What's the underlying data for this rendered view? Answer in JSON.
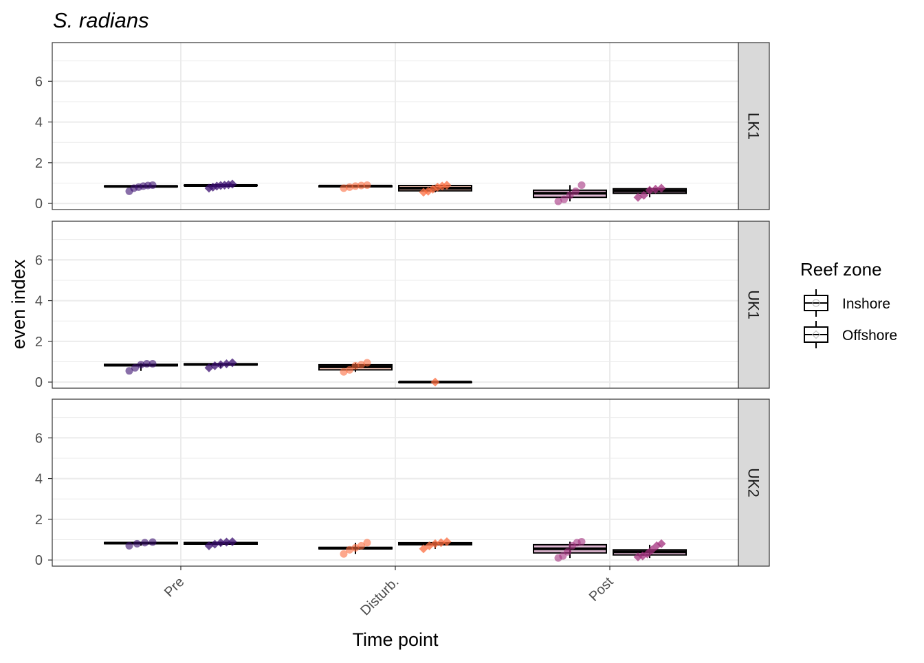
{
  "chart_data": {
    "type": "boxplot",
    "title": "S. radians",
    "xlabel": "Time point",
    "ylabel": "even index",
    "categories": [
      "Pre",
      "Disturb.",
      "Post"
    ],
    "y_ticks": [
      0,
      2,
      4,
      6
    ],
    "ylim": [
      -0.3,
      7.9
    ],
    "grid": true,
    "legend": {
      "title": "Reef zone",
      "position": "right",
      "items": [
        {
          "label": "Inshore",
          "shape": "circle"
        },
        {
          "label": "Offshore",
          "shape": "diamond"
        }
      ]
    },
    "colors": {
      "Pre": "#3b0f70",
      "Disturb.": "#fc6c3f",
      "Post": "#a3307e",
      "strip_bg": "#d9d9d9",
      "grid": "#ebebeb"
    },
    "facets": [
      {
        "label": "LK1",
        "groups": [
          {
            "category": "Pre",
            "zone": "Inshore",
            "box": [
              0.8,
              0.82,
              0.84,
              0.86,
              0.88
            ],
            "points": [
              0.6,
              0.75,
              0.8,
              0.85,
              0.88,
              0.9
            ]
          },
          {
            "category": "Pre",
            "zone": "Offshore",
            "box": [
              0.85,
              0.87,
              0.88,
              0.9,
              0.92
            ],
            "points": [
              0.75,
              0.8,
              0.85,
              0.88,
              0.9,
              0.92,
              0.95
            ]
          },
          {
            "category": "Disturb.",
            "zone": "Inshore",
            "box": [
              0.8,
              0.82,
              0.85,
              0.87,
              0.88
            ],
            "points": [
              0.75,
              0.8,
              0.85,
              0.88,
              0.9
            ]
          },
          {
            "category": "Disturb.",
            "zone": "Offshore",
            "box": [
              0.55,
              0.62,
              0.75,
              0.88,
              0.92
            ],
            "points": [
              0.55,
              0.6,
              0.7,
              0.8,
              0.85,
              0.9
            ]
          },
          {
            "category": "Post",
            "zone": "Inshore",
            "box": [
              0.1,
              0.3,
              0.5,
              0.65,
              0.9
            ],
            "points": [
              0.1,
              0.2,
              0.4,
              0.6,
              0.9
            ]
          },
          {
            "category": "Post",
            "zone": "Offshore",
            "box": [
              0.3,
              0.5,
              0.62,
              0.72,
              0.8
            ],
            "points": [
              0.3,
              0.4,
              0.65,
              0.7,
              0.75
            ]
          }
        ]
      },
      {
        "label": "UK1",
        "groups": [
          {
            "category": "Pre",
            "zone": "Inshore",
            "box": [
              0.55,
              0.8,
              0.83,
              0.87,
              0.92
            ],
            "points": [
              0.55,
              0.7,
              0.85,
              0.9,
              0.9
            ]
          },
          {
            "category": "Pre",
            "zone": "Offshore",
            "box": [
              0.7,
              0.84,
              0.87,
              0.9,
              0.95
            ],
            "points": [
              0.7,
              0.8,
              0.85,
              0.9,
              0.95
            ]
          },
          {
            "category": "Disturb.",
            "zone": "Inshore",
            "box": [
              0.5,
              0.6,
              0.75,
              0.85,
              0.95
            ],
            "points": [
              0.5,
              0.6,
              0.8,
              0.85,
              0.95
            ]
          },
          {
            "category": "Disturb.",
            "zone": "Offshore",
            "box": [
              0.0,
              0.0,
              0.0,
              0.0,
              0.0
            ],
            "points": [
              0.0
            ]
          }
        ]
      },
      {
        "label": "UK2",
        "groups": [
          {
            "category": "Pre",
            "zone": "Inshore",
            "box": [
              0.7,
              0.8,
              0.83,
              0.86,
              0.9
            ],
            "points": [
              0.7,
              0.8,
              0.85,
              0.88
            ]
          },
          {
            "category": "Pre",
            "zone": "Offshore",
            "box": [
              0.7,
              0.78,
              0.82,
              0.86,
              0.9
            ],
            "points": [
              0.7,
              0.78,
              0.85,
              0.88,
              0.9
            ]
          },
          {
            "category": "Disturb.",
            "zone": "Inshore",
            "box": [
              0.3,
              0.55,
              0.58,
              0.62,
              0.85
            ],
            "points": [
              0.3,
              0.5,
              0.6,
              0.7,
              0.85
            ]
          },
          {
            "category": "Disturb.",
            "zone": "Offshore",
            "box": [
              0.55,
              0.75,
              0.8,
              0.85,
              0.9
            ],
            "points": [
              0.55,
              0.7,
              0.8,
              0.85,
              0.9
            ]
          },
          {
            "category": "Post",
            "zone": "Inshore",
            "box": [
              0.1,
              0.35,
              0.55,
              0.75,
              0.9
            ],
            "points": [
              0.1,
              0.2,
              0.4,
              0.7,
              0.85,
              0.9
            ]
          },
          {
            "category": "Post",
            "zone": "Offshore",
            "box": [
              0.1,
              0.25,
              0.4,
              0.5,
              0.75
            ],
            "points": [
              0.15,
              0.2,
              0.3,
              0.5,
              0.7,
              0.8
            ]
          }
        ]
      }
    ]
  }
}
